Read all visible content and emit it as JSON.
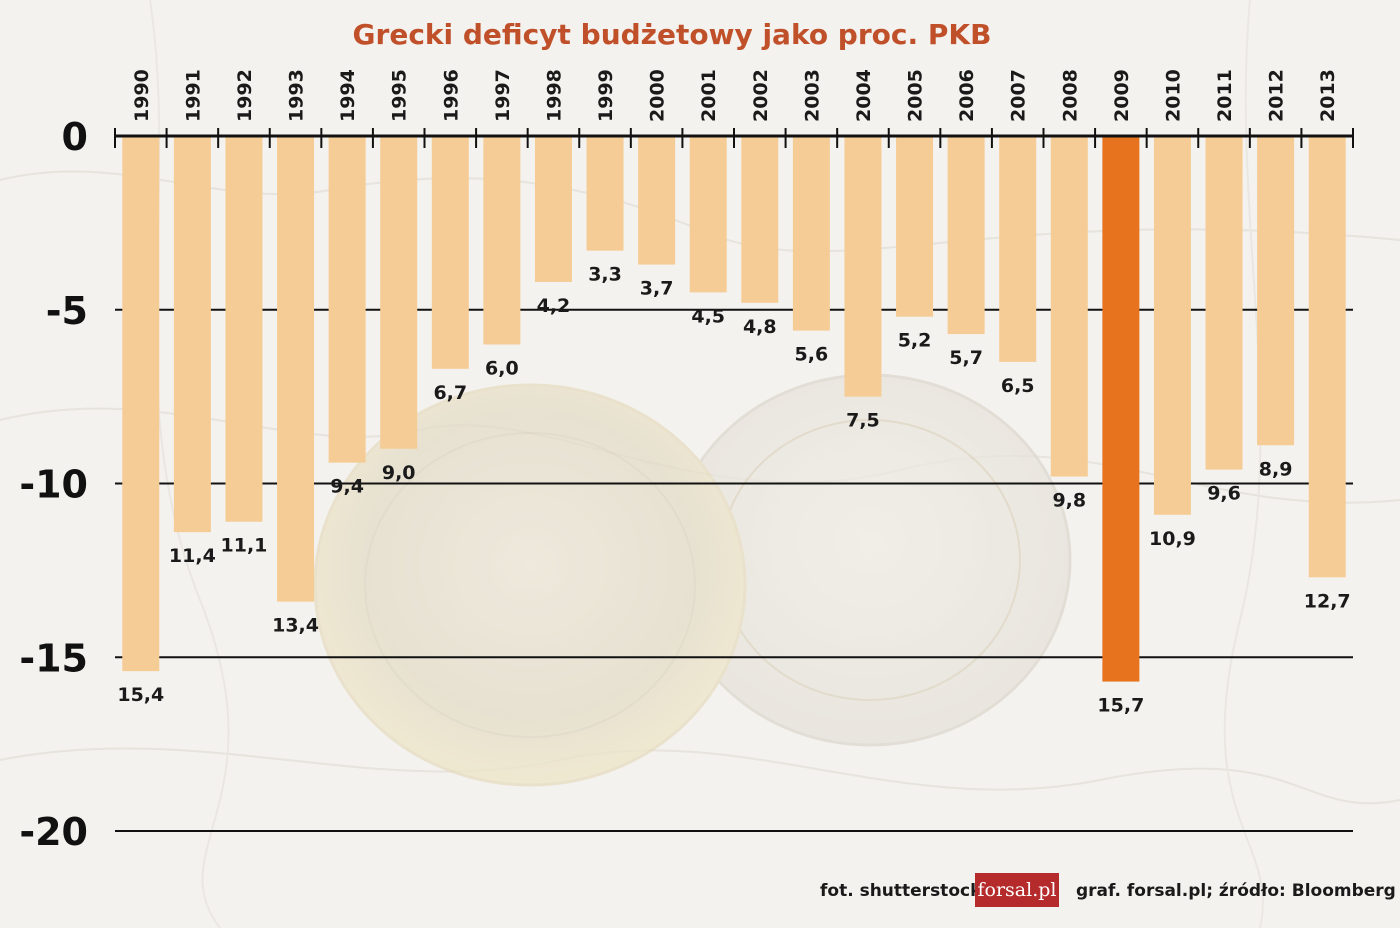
{
  "chart_data": {
    "type": "bar",
    "title": "Grecki deficyt budżetowy jako proc. PKB",
    "categories": [
      "1990",
      "1991",
      "1992",
      "1993",
      "1994",
      "1995",
      "1996",
      "1997",
      "1998",
      "1999",
      "2000",
      "2001",
      "2002",
      "2003",
      "2004",
      "2005",
      "2006",
      "2007",
      "2008",
      "2009",
      "2010",
      "2011",
      "2012",
      "2013"
    ],
    "values": [
      -15.4,
      -11.4,
      -11.1,
      -13.4,
      -9.4,
      -9.0,
      -6.7,
      -6.0,
      -4.2,
      -3.3,
      -3.7,
      -4.5,
      -4.8,
      -5.6,
      -7.5,
      -5.2,
      -5.7,
      -6.5,
      -9.8,
      -15.7,
      -10.9,
      -9.6,
      -8.9,
      -12.7
    ],
    "data_labels": [
      "15,4",
      "11,4",
      "11,1",
      "13,4",
      "9,4",
      "9,0",
      "6,7",
      "6,0",
      "4,2",
      "3,3",
      "3,7",
      "4,5",
      "4,8",
      "5,6",
      "7,5",
      "5,2",
      "5,7",
      "6,5",
      "9,8",
      "15,7",
      "10,9",
      "9,6",
      "8,9",
      "12,7"
    ],
    "ylim": [
      -20,
      0
    ],
    "yticks": [
      0,
      -5,
      -10,
      -15,
      -20
    ],
    "ytick_labels": [
      "0",
      "-5",
      "-10",
      "-15",
      "-20"
    ],
    "xlabel": "",
    "ylabel": "",
    "grid": true,
    "highlight_category": "2009",
    "colors": {
      "bar": "#f6cc96",
      "highlight": "#e8731e",
      "title": "#c0502a",
      "grid": "#111111"
    }
  },
  "footer": {
    "photo_credit": "fot. shutterstock",
    "logo": "forsal.pl",
    "source": "graf. forsal.pl;  źródło: Bloomberg"
  },
  "background": {
    "description_icons": [
      "map-of-greece-image",
      "euro-coin-image"
    ]
  }
}
